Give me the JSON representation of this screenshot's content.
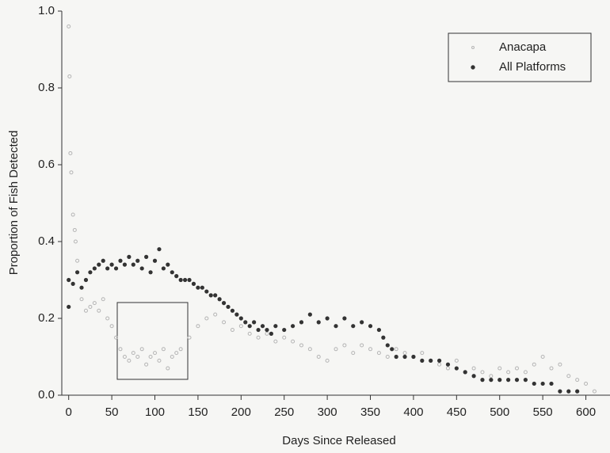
{
  "chart_data": {
    "type": "scatter",
    "xlabel": "Days Since Released",
    "ylabel": "Proportion of Fish Detected",
    "xlim": [
      -8,
      628
    ],
    "ylim": [
      0,
      1
    ],
    "xticks": [
      0,
      50,
      100,
      150,
      200,
      250,
      300,
      350,
      400,
      450,
      500,
      550,
      600
    ],
    "yticks": [
      {
        "value": 0,
        "label": "0.0"
      },
      {
        "value": 0.2,
        "label": "0.2"
      },
      {
        "value": 0.4,
        "label": "0.4"
      },
      {
        "value": 0.6,
        "label": "0.6"
      },
      {
        "value": 0.8,
        "label": "0.8"
      },
      {
        "value": 1,
        "label": "1.0"
      }
    ],
    "legend": "upper right",
    "series": [
      {
        "name": "Anacapa",
        "color": "#b5b5b5",
        "marker": "hollow",
        "x": [
          0,
          1,
          2,
          3,
          5,
          7,
          8,
          10,
          15,
          20,
          25,
          30,
          35,
          40,
          45,
          50,
          55,
          60,
          65,
          70,
          75,
          80,
          85,
          90,
          95,
          100,
          105,
          110,
          115,
          120,
          125,
          130,
          140,
          150,
          160,
          170,
          180,
          190,
          200,
          210,
          220,
          230,
          240,
          250,
          260,
          270,
          280,
          290,
          300,
          310,
          320,
          330,
          340,
          350,
          360,
          370,
          380,
          390,
          400,
          410,
          420,
          430,
          440,
          450,
          460,
          470,
          480,
          490,
          500,
          510,
          520,
          530,
          540,
          550,
          560,
          570,
          580,
          590,
          600,
          610
        ],
        "values": [
          0.96,
          0.83,
          0.63,
          0.58,
          0.47,
          0.43,
          0.4,
          0.35,
          0.25,
          0.22,
          0.23,
          0.24,
          0.22,
          0.25,
          0.2,
          0.18,
          0.15,
          0.12,
          0.1,
          0.09,
          0.11,
          0.1,
          0.12,
          0.08,
          0.1,
          0.11,
          0.09,
          0.12,
          0.07,
          0.1,
          0.11,
          0.12,
          0.15,
          0.18,
          0.2,
          0.21,
          0.19,
          0.17,
          0.18,
          0.16,
          0.15,
          0.16,
          0.14,
          0.15,
          0.14,
          0.13,
          0.12,
          0.1,
          0.09,
          0.12,
          0.13,
          0.11,
          0.13,
          0.12,
          0.11,
          0.1,
          0.12,
          0.11,
          0.1,
          0.11,
          0.09,
          0.08,
          0.07,
          0.09,
          0.06,
          0.07,
          0.06,
          0.05,
          0.07,
          0.06,
          0.07,
          0.06,
          0.08,
          0.1,
          0.07,
          0.08,
          0.05,
          0.04,
          0.03,
          0.01
        ]
      },
      {
        "name": "All Platforms",
        "color": "#333333",
        "marker": "filled",
        "x": [
          0,
          0,
          5,
          10,
          15,
          20,
          25,
          30,
          35,
          40,
          45,
          50,
          55,
          60,
          65,
          70,
          75,
          80,
          85,
          90,
          95,
          100,
          105,
          110,
          115,
          120,
          125,
          130,
          135,
          140,
          145,
          150,
          155,
          160,
          165,
          170,
          175,
          180,
          185,
          190,
          195,
          200,
          205,
          210,
          215,
          220,
          225,
          230,
          235,
          240,
          250,
          260,
          270,
          280,
          290,
          300,
          310,
          320,
          330,
          340,
          350,
          360,
          365,
          370,
          375,
          380,
          390,
          400,
          410,
          420,
          430,
          440,
          450,
          460,
          470,
          480,
          490,
          500,
          510,
          520,
          530,
          540,
          550,
          560,
          570,
          580,
          590
        ],
        "values": [
          0.3,
          0.23,
          0.29,
          0.32,
          0.28,
          0.3,
          0.32,
          0.33,
          0.34,
          0.35,
          0.33,
          0.34,
          0.33,
          0.35,
          0.34,
          0.36,
          0.34,
          0.35,
          0.33,
          0.36,
          0.32,
          0.35,
          0.38,
          0.33,
          0.34,
          0.32,
          0.31,
          0.3,
          0.3,
          0.3,
          0.29,
          0.28,
          0.28,
          0.27,
          0.26,
          0.26,
          0.25,
          0.24,
          0.23,
          0.22,
          0.21,
          0.2,
          0.19,
          0.18,
          0.19,
          0.17,
          0.18,
          0.17,
          0.16,
          0.18,
          0.17,
          0.18,
          0.19,
          0.21,
          0.19,
          0.2,
          0.18,
          0.2,
          0.18,
          0.19,
          0.18,
          0.17,
          0.15,
          0.13,
          0.12,
          0.1,
          0.1,
          0.1,
          0.09,
          0.09,
          0.09,
          0.08,
          0.07,
          0.06,
          0.05,
          0.04,
          0.04,
          0.04,
          0.04,
          0.04,
          0.04,
          0.03,
          0.03,
          0.03,
          0.01,
          0.01,
          0.01
        ]
      }
    ]
  }
}
